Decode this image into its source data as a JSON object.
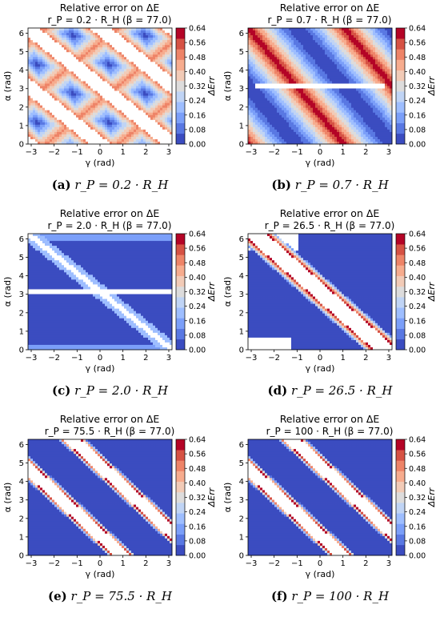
{
  "figure": {
    "colorbar": {
      "label": "ΔErr",
      "ticks": [
        "0.00",
        "0.08",
        "0.16",
        "0.24",
        "0.32",
        "0.40",
        "0.48",
        "0.56",
        "0.64"
      ],
      "colors": [
        "#3b4cc0",
        "#5978e3",
        "#7b9ff9",
        "#9ebeff",
        "#c0d4f5",
        "#dddcdc",
        "#f2cbb7",
        "#f7ac8e",
        "#ee8468",
        "#d65244",
        "#b40426"
      ]
    },
    "axes": {
      "xlabel": "γ (rad)",
      "ylabel": "α (rad)",
      "xticks": [
        "−3",
        "−2",
        "−1",
        "0",
        "1",
        "2",
        "3"
      ],
      "yticks": [
        "0",
        "1",
        "2",
        "3",
        "4",
        "5",
        "6"
      ]
    }
  },
  "chart_data": [
    {
      "type": "heatmap",
      "title": "Relative error on ΔE",
      "subtitle": "r_P = 0.2 · R_H (β = 77.0)",
      "caption_tag": "(a)",
      "caption_math": "r_P = 0.2 · R_H",
      "pattern": "diagonal-lozenges",
      "xlim": [
        -3.14,
        3.14
      ],
      "ylim": [
        0,
        6.28
      ]
    },
    {
      "type": "heatmap",
      "title": "Relative error on ΔE",
      "subtitle": "r_P = 0.7 · R_H (β = 77.0)",
      "caption_tag": "(b)",
      "caption_math": "r_P = 0.7 · R_H",
      "pattern": "diagonal-bands",
      "xlim": [
        -3.14,
        3.14
      ],
      "ylim": [
        0,
        6.28
      ]
    },
    {
      "type": "heatmap",
      "title": "Relative error on ΔE",
      "subtitle": "r_P = 2.0 · R_H (β = 77.0)",
      "caption_tag": "(c)",
      "caption_math": "r_P = 2.0 · R_H",
      "pattern": "mostly-low",
      "xlim": [
        -3.14,
        3.14
      ],
      "ylim": [
        0,
        6.28
      ]
    },
    {
      "type": "heatmap",
      "title": "Relative error on ΔE",
      "subtitle": "r_P = 26.5 · R_H (β = 77.0)",
      "caption_tag": "(d)",
      "caption_math": "r_P = 26.5 · R_H",
      "pattern": "central-band",
      "xlim": [
        -3.14,
        3.14
      ],
      "ylim": [
        0,
        6.28
      ]
    },
    {
      "type": "heatmap",
      "title": "Relative error on ΔE",
      "subtitle": "r_P = 75.5 · R_H (β = 77.0)",
      "caption_tag": "(e)",
      "caption_math": "r_P = 75.5 · R_H",
      "pattern": "two-bands",
      "xlim": [
        -3.14,
        3.14
      ],
      "ylim": [
        0,
        6.28
      ]
    },
    {
      "type": "heatmap",
      "title": "Relative error on ΔE",
      "subtitle": "r_P = 100 · R_H (β = 77.0)",
      "caption_tag": "(f)",
      "caption_math": "r_P = 100 · R_H",
      "pattern": "two-bands",
      "xlim": [
        -3.14,
        3.14
      ],
      "ylim": [
        0,
        6.28
      ]
    }
  ]
}
